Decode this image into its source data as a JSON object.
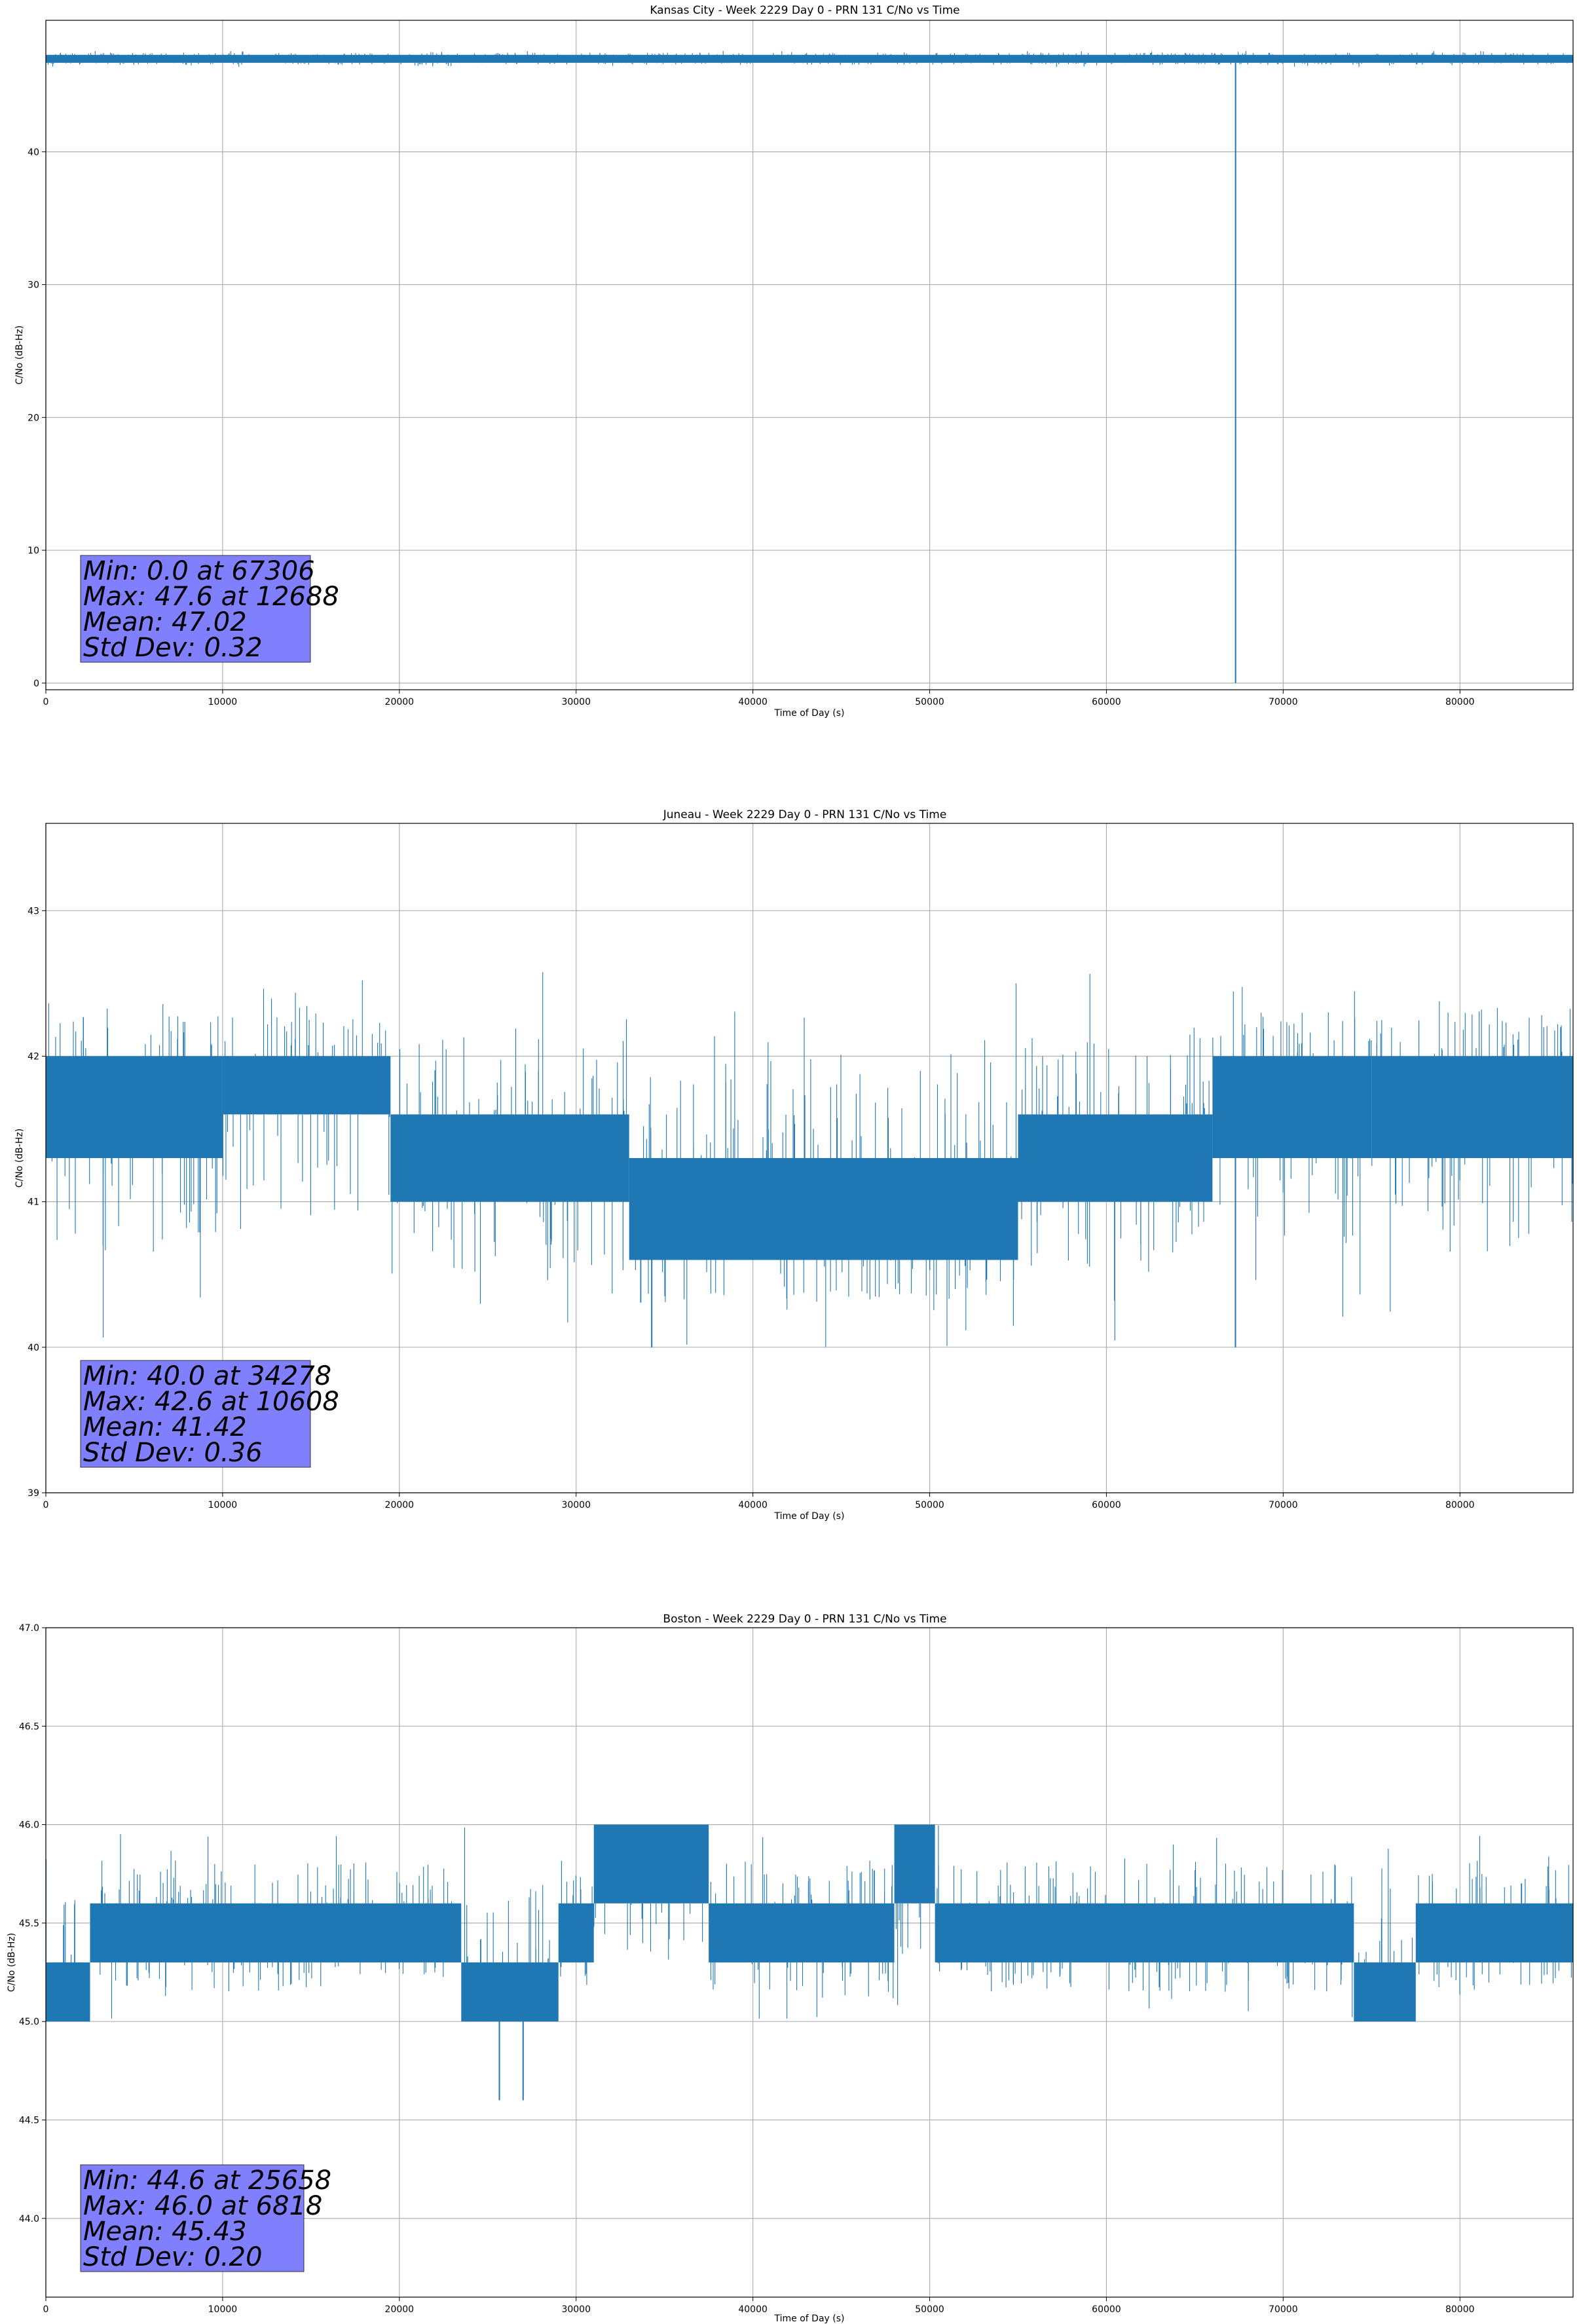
{
  "figure": {
    "background": "#ffffff",
    "line_color": "#1f77b4",
    "grid_color": "#b0b0b0",
    "statbox_color": "#8080ff"
  },
  "chart_data": [
    {
      "type": "line",
      "title": "Kansas City - Week 2229 Day 0 - PRN 131 C/No vs Time",
      "xlabel": "Time of Day (s)",
      "ylabel": "C/No (dB-Hz)",
      "xlim": [
        0,
        86400
      ],
      "ylim": [
        -0.5,
        49.9
      ],
      "xticks": [
        0,
        10000,
        20000,
        30000,
        40000,
        50000,
        60000,
        70000,
        80000
      ],
      "xtick_labels": [
        "0",
        "10000",
        "20000",
        "30000",
        "40000",
        "50000",
        "60000",
        "70000",
        "80000"
      ],
      "yticks": [
        0,
        10,
        20,
        30,
        40
      ],
      "ytick_labels": [
        "0",
        "10",
        "20",
        "30",
        "40"
      ],
      "grid": true,
      "series": [
        {
          "band": {
            "segments": [
              {
                "x": [
                  0,
                  86400
                ],
                "low": 46.7,
                "high": 47.3
              }
            ],
            "spikes_high_max": 47.6,
            "spikes_low_min": 46.4
          },
          "drops": [
            {
              "x": 67306,
              "to": 0.0
            }
          ]
        }
      ],
      "stats": [
        "Min: 0.0 at 67306",
        "Max: 47.6 at 12688",
        "Mean: 47.02",
        "Std Dev: 0.32"
      ]
    },
    {
      "type": "line",
      "title": "Juneau - Week 2229 Day 0 - PRN 131 C/No vs Time",
      "xlabel": "Time of Day (s)",
      "ylabel": "C/No (dB-Hz)",
      "xlim": [
        0,
        86400
      ],
      "ylim": [
        39.0,
        43.6
      ],
      "xticks": [
        0,
        10000,
        20000,
        30000,
        40000,
        50000,
        60000,
        70000,
        80000
      ],
      "xtick_labels": [
        "0",
        "10000",
        "20000",
        "30000",
        "40000",
        "50000",
        "60000",
        "70000",
        "80000"
      ],
      "yticks": [
        39,
        40,
        41,
        42,
        43
      ],
      "ytick_labels": [
        "39",
        "40",
        "41",
        "42",
        "43"
      ],
      "grid": true,
      "series": [
        {
          "band": {
            "segments": [
              {
                "x": [
                  0,
                  3000
                ],
                "low": 41.3,
                "high": 42.0
              },
              {
                "x": [
                  3000,
                  10000
                ],
                "low": 41.3,
                "high": 42.0
              },
              {
                "x": [
                  10000,
                  19500
                ],
                "low": 41.6,
                "high": 42.0
              },
              {
                "x": [
                  19500,
                  33000
                ],
                "low": 41.0,
                "high": 41.6
              },
              {
                "x": [
                  33000,
                  55000
                ],
                "low": 40.6,
                "high": 41.3
              },
              {
                "x": [
                  55000,
                  66000
                ],
                "low": 41.0,
                "high": 41.6
              },
              {
                "x": [
                  66000,
                  75000
                ],
                "low": 41.3,
                "high": 42.0
              },
              {
                "x": [
                  75000,
                  86400
                ],
                "low": 41.3,
                "high": 42.0
              }
            ],
            "spikes_high_max": 42.6,
            "spikes_low_min": 40.0
          },
          "drops": [
            {
              "x": 34278,
              "to": 40.0
            },
            {
              "x": 67300,
              "to": 40.0
            }
          ]
        }
      ],
      "stats": [
        "Min: 40.0 at 34278",
        "Max: 42.6 at 10608",
        "Mean: 41.42",
        "Std Dev: 0.36"
      ]
    },
    {
      "type": "line",
      "title": "Boston - Week 2229 Day 0 - PRN 131 C/No vs Time",
      "xlabel": "Time of Day (s)",
      "ylabel": "C/No (dB-Hz)",
      "xlim": [
        0,
        86400
      ],
      "ylim": [
        43.6,
        47.0
      ],
      "xticks": [
        0,
        10000,
        20000,
        30000,
        40000,
        50000,
        60000,
        70000,
        80000
      ],
      "xtick_labels": [
        "0",
        "10000",
        "20000",
        "30000",
        "40000",
        "50000",
        "60000",
        "70000",
        "80000"
      ],
      "yticks": [
        44.0,
        44.5,
        45.0,
        45.5,
        46.0,
        46.5,
        47.0
      ],
      "ytick_labels": [
        "44.0",
        "44.5",
        "45.0",
        "45.5",
        "46.0",
        "46.5",
        "47.0"
      ],
      "grid": true,
      "series": [
        {
          "band": {
            "segments": [
              {
                "x": [
                  0,
                  2500
                ],
                "low": 45.0,
                "high": 45.3
              },
              {
                "x": [
                  2500,
                  23500
                ],
                "low": 45.3,
                "high": 45.6
              },
              {
                "x": [
                  23500,
                  29000
                ],
                "low": 45.0,
                "high": 45.3
              },
              {
                "x": [
                  29000,
                  31000
                ],
                "low": 45.3,
                "high": 45.6
              },
              {
                "x": [
                  31000,
                  37500
                ],
                "low": 45.6,
                "high": 46.0
              },
              {
                "x": [
                  37500,
                  48000
                ],
                "low": 45.3,
                "high": 45.6
              },
              {
                "x": [
                  48000,
                  50300
                ],
                "low": 45.6,
                "high": 46.0
              },
              {
                "x": [
                  50300,
                  74000
                ],
                "low": 45.3,
                "high": 45.6
              },
              {
                "x": [
                  74000,
                  77500
                ],
                "low": 45.0,
                "high": 45.3
              },
              {
                "x": [
                  77500,
                  86400
                ],
                "low": 45.3,
                "high": 45.6
              }
            ],
            "spikes_high_max": 46.0,
            "spikes_low_min": 45.0
          },
          "drops": [
            {
              "x": 25658,
              "to": 44.6
            },
            {
              "x": 27000,
              "to": 44.6
            }
          ]
        }
      ],
      "stats": [
        "Min: 44.6 at 25658",
        "Max: 46.0 at 6818",
        "Mean: 45.43",
        "Std Dev: 0.20"
      ]
    }
  ]
}
